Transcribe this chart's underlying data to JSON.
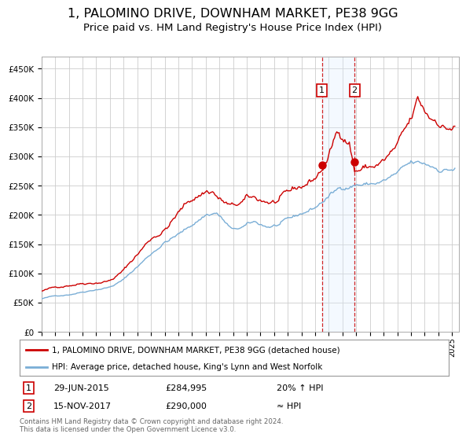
{
  "title": "1, PALOMINO DRIVE, DOWNHAM MARKET, PE38 9GG",
  "subtitle": "Price paid vs. HM Land Registry's House Price Index (HPI)",
  "footer": "Contains HM Land Registry data © Crown copyright and database right 2024.\nThis data is licensed under the Open Government Licence v3.0.",
  "legend_line1": "1, PALOMINO DRIVE, DOWNHAM MARKET, PE38 9GG (detached house)",
  "legend_line2": "HPI: Average price, detached house, King's Lynn and West Norfolk",
  "sale1_label": "1",
  "sale1_date": "29-JUN-2015",
  "sale1_price": "£284,995",
  "sale1_note": "20% ↑ HPI",
  "sale1_year": 2015.5,
  "sale2_label": "2",
  "sale2_date": "15-NOV-2017",
  "sale2_price": "£290,000",
  "sale2_note": "≈ HPI",
  "sale2_year": 2017.88,
  "red_line_color": "#cc0000",
  "blue_line_color": "#7aaed6",
  "highlight_color": "#ddeeff",
  "dot_color": "#cc0000",
  "grid_color": "#cccccc",
  "bg_color": "#ffffff",
  "ylim": [
    0,
    470000
  ],
  "xlim_start": 1995,
  "xlim_end": 2025.5,
  "title_fontsize": 11.5,
  "subtitle_fontsize": 9.5
}
